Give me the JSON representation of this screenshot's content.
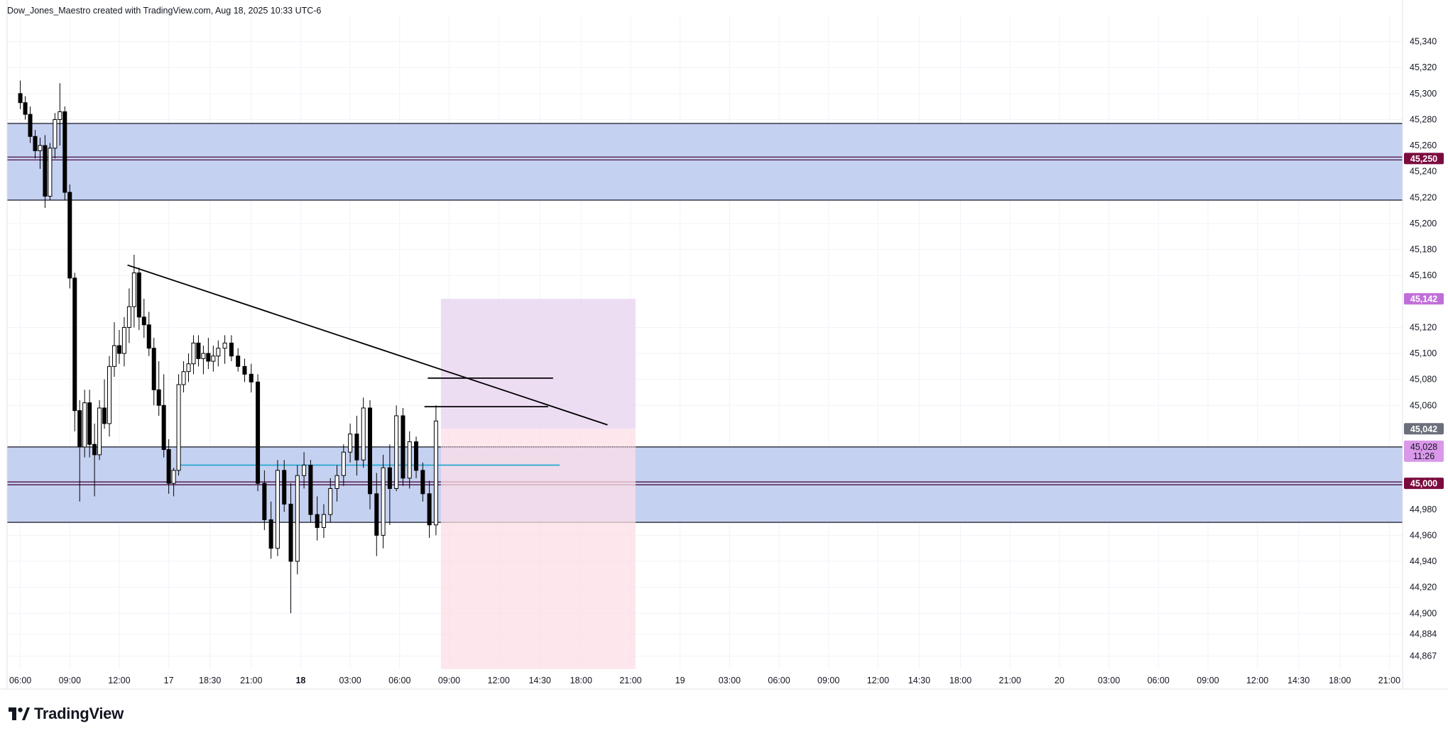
{
  "header": {
    "text": "Dow_Jones_Maestro created with TradingView.com, Aug 18, 2025 10:33 UTC-6"
  },
  "footer": {
    "brand": "TradingView",
    "logo_icon": "tradingview-logo-icon"
  },
  "colors": {
    "zone_fill": "#c5d1f1",
    "zone_border": "#131722",
    "level_line": "#4a0f3f",
    "level_badge": "#7b0b3e",
    "target_fill": "#ead7f1",
    "stop_fill": "#fcdde6",
    "target_badge": "#c06fd8",
    "price_badge": "#6b6f7a",
    "last_badge": "#d998e9",
    "trend": "#000000",
    "cyan_line": "#29a8d2",
    "grid": "#f0f3fa"
  },
  "chart_data": {
    "type": "candlestick",
    "symbol": "",
    "ylim": [
      44857,
      45360
    ],
    "y_ticks": [
      {
        "value": 45340,
        "label": "45,340"
      },
      {
        "value": 45320,
        "label": "45,320"
      },
      {
        "value": 45300,
        "label": "45,300"
      },
      {
        "value": 45280,
        "label": "45,280"
      },
      {
        "value": 45260,
        "label": "45,260"
      },
      {
        "value": 45240,
        "label": "45,240"
      },
      {
        "value": 45220,
        "label": "45,220"
      },
      {
        "value": 45200,
        "label": "45,200"
      },
      {
        "value": 45180,
        "label": "45,180"
      },
      {
        "value": 45160,
        "label": "45,160"
      },
      {
        "value": 45120,
        "label": "45,120"
      },
      {
        "value": 45100,
        "label": "45,100"
      },
      {
        "value": 45080,
        "label": "45,080"
      },
      {
        "value": 45060,
        "label": "45,060"
      },
      {
        "value": 44980,
        "label": "44,980"
      },
      {
        "value": 44960,
        "label": "44,960"
      },
      {
        "value": 44940,
        "label": "44,940"
      },
      {
        "value": 44920,
        "label": "44,920"
      },
      {
        "value": 44900,
        "label": "44,900"
      },
      {
        "value": 44884,
        "label": "44,884"
      },
      {
        "value": 44867,
        "label": "44,867"
      }
    ],
    "x_ticks": [
      {
        "label": "06:00",
        "t": 0,
        "bold": false
      },
      {
        "label": "09:00",
        "t": 3,
        "bold": false
      },
      {
        "label": "12:00",
        "t": 6,
        "bold": false
      },
      {
        "label": "17",
        "t": 9,
        "bold": false
      },
      {
        "label": "18:30",
        "t": 11.5,
        "bold": false
      },
      {
        "label": "21:00",
        "t": 14,
        "bold": false
      },
      {
        "label": "18",
        "t": 17,
        "bold": true
      },
      {
        "label": "03:00",
        "t": 20,
        "bold": false
      },
      {
        "label": "06:00",
        "t": 23,
        "bold": false
      },
      {
        "label": "09:00",
        "t": 26,
        "bold": false
      },
      {
        "label": "12:00",
        "t": 29,
        "bold": false
      },
      {
        "label": "14:30",
        "t": 31.5,
        "bold": false
      },
      {
        "label": "18:00",
        "t": 34,
        "bold": false
      },
      {
        "label": "21:00",
        "t": 37,
        "bold": false
      },
      {
        "label": "19",
        "t": 40,
        "bold": false
      },
      {
        "label": "03:00",
        "t": 43,
        "bold": false
      },
      {
        "label": "06:00",
        "t": 46,
        "bold": false
      },
      {
        "label": "09:00",
        "t": 49,
        "bold": false
      },
      {
        "label": "12:00",
        "t": 52,
        "bold": false
      },
      {
        "label": "14:30",
        "t": 54.5,
        "bold": false
      },
      {
        "label": "18:00",
        "t": 57,
        "bold": false
      },
      {
        "label": "21:00",
        "t": 60,
        "bold": false
      },
      {
        "label": "20",
        "t": 63,
        "bold": false
      },
      {
        "label": "03:00",
        "t": 66,
        "bold": false
      },
      {
        "label": "06:00",
        "t": 69,
        "bold": false
      },
      {
        "label": "09:00",
        "t": 72,
        "bold": false
      },
      {
        "label": "12:00",
        "t": 75,
        "bold": false
      },
      {
        "label": "14:30",
        "t": 77.5,
        "bold": false
      },
      {
        "label": "18:00",
        "t": 80,
        "bold": false
      },
      {
        "label": "21:00",
        "t": 83,
        "bold": false
      }
    ],
    "x_range": [
      -0.8,
      83.8
    ],
    "zones": [
      {
        "name": "upper-supply-zone",
        "top": 45277,
        "bottom": 45218,
        "mid": 45250
      },
      {
        "name": "lower-demand-zone",
        "top": 45028,
        "bottom": 44970,
        "mid": 45000
      }
    ],
    "levels": [
      {
        "value": 45250,
        "label": "45,250",
        "type": "key-level"
      },
      {
        "value": 45000,
        "label": "45,000",
        "type": "key-level"
      }
    ],
    "position": {
      "t_start": 25.5,
      "t_end": 37.3,
      "entry": 45042,
      "target": 45142,
      "stop": 44857
    },
    "trendline": {
      "t1": 6.5,
      "p1": 45168,
      "t2": 35.6,
      "p2": 45045
    },
    "horizontal_lines": [
      {
        "t1": 24.7,
        "t2": 32.3,
        "price": 45081,
        "color": "#000000"
      },
      {
        "t1": 24.5,
        "t2": 32.0,
        "price": 45059,
        "color": "#000000"
      },
      {
        "t1": 9.7,
        "t2": 32.7,
        "price": 45014,
        "color": "#29a8d2"
      }
    ],
    "price_badges": [
      {
        "value": 45250,
        "label": "45,250",
        "color_key": "level_badge"
      },
      {
        "value": 45142,
        "label": "45,142",
        "color_key": "target_badge"
      },
      {
        "value": 45042,
        "label": "45,042",
        "color_key": "price_badge"
      },
      {
        "value": 45000,
        "label": "45,000",
        "color_key": "level_badge"
      }
    ],
    "last_price": {
      "value": 45028,
      "label": "45,028",
      "countdown": "11:26"
    },
    "candles": [
      [
        0.0,
        45300,
        45310,
        45288,
        45293
      ],
      [
        0.3,
        45293,
        45298,
        45280,
        45284
      ],
      [
        0.6,
        45284,
        45290,
        45262,
        45267
      ],
      [
        0.9,
        45267,
        45272,
        45250,
        45256
      ],
      [
        1.2,
        45256,
        45266,
        45242,
        45260
      ],
      [
        1.5,
        45260,
        45268,
        45212,
        45221
      ],
      [
        1.8,
        45221,
        45262,
        45218,
        45258
      ],
      [
        2.1,
        45258,
        45285,
        45250,
        45280
      ],
      [
        2.4,
        45280,
        45308,
        45260,
        45286
      ],
      [
        2.7,
        45286,
        45290,
        45218,
        45224
      ],
      [
        3.0,
        45224,
        45230,
        45150,
        45158
      ],
      [
        3.3,
        45158,
        45162,
        45040,
        45056
      ],
      [
        3.6,
        45056,
        45064,
        44986,
        45028
      ],
      [
        3.9,
        45028,
        45072,
        45020,
        45062
      ],
      [
        4.2,
        45062,
        45072,
        45020,
        45030
      ],
      [
        4.5,
        45030,
        45046,
        44990,
        45022
      ],
      [
        4.8,
        45022,
        45064,
        45018,
        45058
      ],
      [
        5.1,
        45058,
        45080,
        45042,
        45046
      ],
      [
        5.4,
        45046,
        45098,
        45036,
        45090
      ],
      [
        5.7,
        45090,
        45124,
        45082,
        45106
      ],
      [
        6.0,
        45106,
        45118,
        45092,
        45100
      ],
      [
        6.3,
        45100,
        45128,
        45090,
        45120
      ],
      [
        6.6,
        45120,
        45150,
        45108,
        45136
      ],
      [
        6.9,
        45136,
        45176,
        45120,
        45162
      ],
      [
        7.2,
        45162,
        45166,
        45118,
        45128
      ],
      [
        7.5,
        45128,
        45142,
        45112,
        45122
      ],
      [
        7.8,
        45122,
        45132,
        45098,
        45104
      ],
      [
        8.1,
        45104,
        45112,
        45060,
        45072
      ],
      [
        8.4,
        45072,
        45094,
        45052,
        45060
      ],
      [
        8.7,
        45060,
        45084,
        45020,
        45026
      ],
      [
        9.0,
        45026,
        45034,
        44992,
        45000
      ],
      [
        9.3,
        45000,
        45012,
        44990,
        45010
      ],
      [
        9.6,
        45010,
        45084,
        45006,
        45076
      ],
      [
        9.9,
        45076,
        45094,
        45070,
        45086
      ],
      [
        10.2,
        45086,
        45100,
        45078,
        45092
      ],
      [
        10.5,
        45092,
        45114,
        45084,
        45108
      ],
      [
        10.8,
        45108,
        45114,
        45090,
        45096
      ],
      [
        11.1,
        45096,
        45106,
        45084,
        45100
      ],
      [
        11.4,
        45100,
        45112,
        45088,
        45094
      ],
      [
        11.7,
        45094,
        45106,
        45086,
        45098
      ],
      [
        12.0,
        45098,
        45110,
        45090,
        45104
      ],
      [
        12.4,
        45104,
        45114,
        45092,
        45108
      ],
      [
        12.8,
        45108,
        45114,
        45094,
        45098
      ],
      [
        13.2,
        45098,
        45104,
        45086,
        45090
      ],
      [
        13.6,
        45090,
        45096,
        45078,
        45084
      ],
      [
        14.0,
        45084,
        45092,
        45070,
        45078
      ],
      [
        14.4,
        45078,
        45084,
        44994,
        45000
      ],
      [
        14.8,
        45000,
        45010,
        44964,
        44972
      ],
      [
        15.2,
        44972,
        44986,
        44942,
        44950
      ],
      [
        15.6,
        44950,
        45018,
        44944,
        45010
      ],
      [
        16.0,
        45010,
        45018,
        44978,
        44984
      ],
      [
        16.4,
        44984,
        45000,
        44900,
        44940
      ],
      [
        16.8,
        44940,
        45014,
        44930,
        45006
      ],
      [
        17.2,
        45006,
        45024,
        44996,
        45014
      ],
      [
        17.6,
        45014,
        45018,
        44970,
        44976
      ],
      [
        18.0,
        44976,
        44990,
        44956,
        44966
      ],
      [
        18.4,
        44966,
        44984,
        44958,
        44976
      ],
      [
        18.8,
        44976,
        45004,
        44970,
        44996
      ],
      [
        19.2,
        44996,
        45014,
        44986,
        45006
      ],
      [
        19.6,
        45006,
        45030,
        44998,
        45024
      ],
      [
        20.0,
        45024,
        45046,
        45016,
        45038
      ],
      [
        20.4,
        45038,
        45052,
        45006,
        45018
      ],
      [
        20.8,
        45018,
        45066,
        45012,
        45058
      ],
      [
        21.2,
        45058,
        45064,
        44980,
        44992
      ],
      [
        21.6,
        44992,
        45008,
        44944,
        44960
      ],
      [
        22.0,
        44960,
        45022,
        44950,
        45012
      ],
      [
        22.4,
        45012,
        45030,
        44968,
        44996
      ],
      [
        22.8,
        44996,
        45060,
        44994,
        45052
      ],
      [
        23.2,
        45052,
        45058,
        44998,
        45004
      ],
      [
        23.6,
        45004,
        45040,
        44996,
        45032
      ],
      [
        24.0,
        45032,
        45036,
        45004,
        45010
      ],
      [
        24.4,
        45010,
        45016,
        44986,
        44992
      ],
      [
        24.8,
        44992,
        45002,
        44958,
        44968
      ],
      [
        25.2,
        44968,
        45060,
        44960,
        45048
      ]
    ]
  }
}
